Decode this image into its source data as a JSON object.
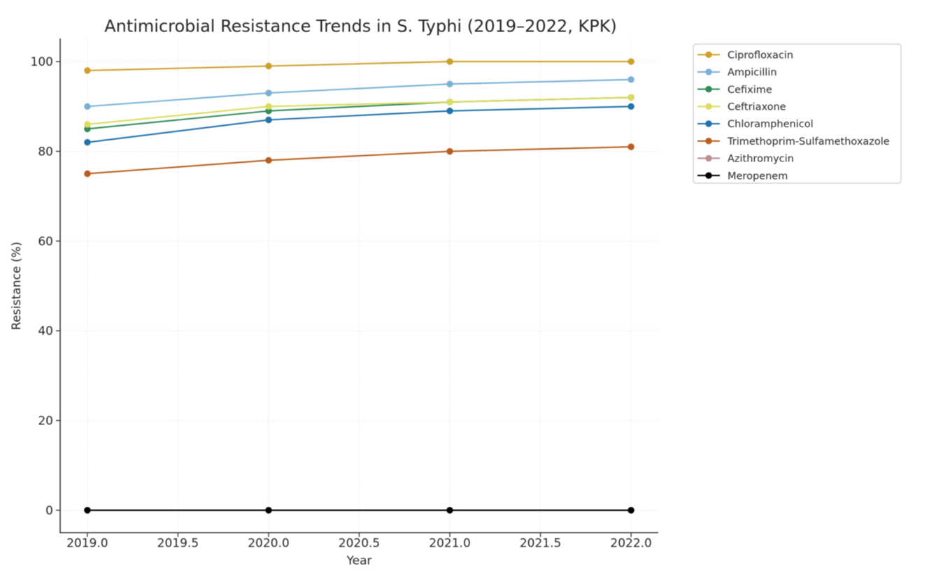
{
  "chart_data": {
    "type": "line",
    "title": "Antimicrobial Resistance Trends in S. Typhi (2019–2022, KPK)",
    "xlabel": "Year",
    "ylabel": "Resistance (%)",
    "x": [
      2019,
      2020,
      2021,
      2022
    ],
    "series": [
      {
        "name": "Ciprofloxacin",
        "color": "#CCA02A",
        "values": [
          98,
          99,
          100,
          100
        ]
      },
      {
        "name": "Ampicillin",
        "color": "#79B1D6",
        "values": [
          90,
          93,
          95,
          96
        ]
      },
      {
        "name": "Cefixime",
        "color": "#2E8B57",
        "values": [
          85,
          89,
          91,
          92
        ]
      },
      {
        "name": "Ceftriaxone",
        "color": "#DCDB5E",
        "values": [
          86,
          90,
          91,
          92
        ]
      },
      {
        "name": "Chloramphenicol",
        "color": "#2171AC",
        "values": [
          82,
          87,
          89,
          90
        ]
      },
      {
        "name": "Trimethoprim-Sulfamethoxazole",
        "color": "#B95D1E",
        "values": [
          75,
          78,
          80,
          81
        ]
      },
      {
        "name": "Azithromycin",
        "color": "#BC8F8F",
        "values": [
          0,
          0,
          0,
          0
        ]
      },
      {
        "name": "Meropenem",
        "color": "#000000",
        "values": [
          0,
          0,
          0,
          0
        ]
      }
    ],
    "xlim": [
      2018.85,
      2022.15
    ],
    "ylim": [
      -5,
      105
    ],
    "xticks": {
      "values": [
        2019,
        2019.5,
        2020,
        2020.5,
        2021,
        2021.5,
        2022
      ],
      "labels": [
        "2019.0",
        "2019.5",
        "2020.0",
        "2020.5",
        "2021.0",
        "2021.5",
        "2022.0"
      ]
    },
    "yticks": {
      "values": [
        0,
        20,
        40,
        60,
        80,
        100
      ],
      "labels": [
        "0",
        "20",
        "40",
        "60",
        "80",
        "100"
      ]
    },
    "grid": true,
    "grid_color": "#cccccc",
    "axis_color": "#2b2b2b",
    "text_color": "#262626",
    "legend_position": "outside upper right",
    "legend_border_color": "#cccccc",
    "background_color": "#ffffff"
  }
}
